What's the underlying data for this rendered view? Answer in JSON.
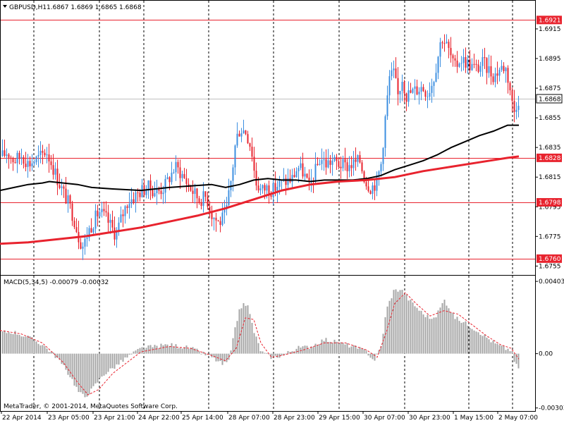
{
  "header": {
    "symbol_text": "GBPUSD,H1",
    "ohlc_text": "1.6867 1.6869 1.6865 1.6868"
  },
  "macd": {
    "label": "MACD(5,34,5) -0.00079 -0.00032"
  },
  "footer": {
    "copyright": "MetaTrader, © 2001-2014, MetaQuotes Software Corp."
  },
  "colors": {
    "bull": "#3c8fe0",
    "bear": "#e8232e",
    "ma_fast": "#000000",
    "ma_slow": "#e8232e",
    "level_line": "#e8232e",
    "macd_hist": "#a6a6a6",
    "macd_signal": "#e8232e",
    "grid": "#000000",
    "frame": "#000000"
  },
  "chart_data": [
    {
      "type": "candlestick",
      "title": "GBPUSD,H1",
      "ylim": [
        1.6749,
        1.6934
      ],
      "y_ticks": [
        "1.6915",
        "1.6895",
        "1.6875",
        "1.6855",
        "1.6835",
        "1.6815",
        "1.6795",
        "1.6775",
        "1.6755"
      ],
      "x_ticks": [
        "22 Apr 2014",
        "23 Apr 05:00",
        "23 Apr 21:00",
        "24 Apr 22:00",
        "25 Apr 14:00",
        "28 Apr 07:00",
        "28 Apr 23:00",
        "29 Apr 15:00",
        "30 Apr 07:00",
        "30 Apr 23:00",
        "1 May 15:00",
        "2 May 07:00"
      ],
      "current_price": "1.6868",
      "levels": [
        {
          "label": "1.6921",
          "value": 1.6921
        },
        {
          "label": "1.6828",
          "value": 1.6828
        },
        {
          "label": "1.6798",
          "value": 1.6798
        },
        {
          "label": "1.6760",
          "value": 1.676
        }
      ],
      "price_path": [
        [
          0,
          1.6828
        ],
        [
          10,
          1.6832
        ],
        [
          20,
          1.6826
        ],
        [
          30,
          1.683
        ],
        [
          40,
          1.6824
        ],
        [
          55,
          1.6828
        ],
        [
          65,
          1.6833
        ],
        [
          72,
          1.6825
        ],
        [
          80,
          1.6815
        ],
        [
          88,
          1.6806
        ],
        [
          96,
          1.6798
        ],
        [
          104,
          1.6788
        ],
        [
          112,
          1.6773
        ],
        [
          118,
          1.6768
        ],
        [
          124,
          1.6778
        ],
        [
          132,
          1.6785
        ],
        [
          140,
          1.6792
        ],
        [
          150,
          1.6787
        ],
        [
          158,
          1.6781
        ],
        [
          164,
          1.6776
        ],
        [
          172,
          1.6788
        ],
        [
          180,
          1.6798
        ],
        [
          190,
          1.6802
        ],
        [
          200,
          1.6806
        ],
        [
          210,
          1.6808
        ],
        [
          222,
          1.6805
        ],
        [
          232,
          1.6808
        ],
        [
          240,
          1.6815
        ],
        [
          248,
          1.6822
        ],
        [
          256,
          1.6818
        ],
        [
          264,
          1.6812
        ],
        [
          272,
          1.6806
        ],
        [
          282,
          1.68
        ],
        [
          292,
          1.6802
        ],
        [
          300,
          1.679
        ],
        [
          310,
          1.6784
        ],
        [
          320,
          1.679
        ],
        [
          328,
          1.6815
        ],
        [
          334,
          1.684
        ],
        [
          340,
          1.6848
        ],
        [
          348,
          1.6846
        ],
        [
          356,
          1.6835
        ],
        [
          362,
          1.6812
        ],
        [
          370,
          1.6806
        ],
        [
          378,
          1.6808
        ],
        [
          386,
          1.6806
        ],
        [
          394,
          1.681
        ],
        [
          404,
          1.6812
        ],
        [
          414,
          1.6814
        ],
        [
          422,
          1.6822
        ],
        [
          430,
          1.6818
        ],
        [
          438,
          1.6808
        ],
        [
          446,
          1.6818
        ],
        [
          454,
          1.6828
        ],
        [
          462,
          1.6824
        ],
        [
          470,
          1.6826
        ],
        [
          480,
          1.6824
        ],
        [
          490,
          1.6822
        ],
        [
          500,
          1.6824
        ],
        [
          510,
          1.6826
        ],
        [
          518,
          1.6812
        ],
        [
          526,
          1.6808
        ],
        [
          534,
          1.6812
        ],
        [
          540,
          1.6824
        ],
        [
          546,
          1.6855
        ],
        [
          552,
          1.6882
        ],
        [
          558,
          1.6885
        ],
        [
          564,
          1.687
        ],
        [
          570,
          1.6882
        ],
        [
          576,
          1.687
        ],
        [
          582,
          1.6872
        ],
        [
          590,
          1.6874
        ],
        [
          598,
          1.6876
        ],
        [
          606,
          1.6872
        ],
        [
          614,
          1.688
        ],
        [
          620,
          1.6895
        ],
        [
          626,
          1.691
        ],
        [
          632,
          1.6905
        ],
        [
          638,
          1.6898
        ],
        [
          644,
          1.6888
        ],
        [
          652,
          1.6895
        ],
        [
          660,
          1.6893
        ],
        [
          668,
          1.689
        ],
        [
          676,
          1.6888
        ],
        [
          684,
          1.6892
        ],
        [
          692,
          1.6888
        ],
        [
          700,
          1.6883
        ],
        [
          708,
          1.6888
        ],
        [
          716,
          1.689
        ],
        [
          722,
          1.6878
        ],
        [
          728,
          1.6858
        ],
        [
          734,
          1.6868
        ]
      ],
      "series": [
        {
          "name": "",
          "kind": "ma_fast",
          "points": [
            [
              0,
              1.6806
            ],
            [
              20,
              1.6808
            ],
            [
              40,
              1.681
            ],
            [
              60,
              1.6811
            ],
            [
              70,
              1.6812
            ],
            [
              90,
              1.6811
            ],
            [
              110,
              1.681
            ],
            [
              130,
              1.6808
            ],
            [
              160,
              1.6807
            ],
            [
              200,
              1.6806
            ],
            [
              240,
              1.6808
            ],
            [
              270,
              1.6809
            ],
            [
              300,
              1.681
            ],
            [
              320,
              1.6808
            ],
            [
              340,
              1.681
            ],
            [
              360,
              1.6813
            ],
            [
              380,
              1.6814
            ],
            [
              400,
              1.6813
            ],
            [
              420,
              1.6813
            ],
            [
              440,
              1.6812
            ],
            [
              460,
              1.6813
            ],
            [
              480,
              1.6813
            ],
            [
              500,
              1.6813
            ],
            [
              520,
              1.6814
            ],
            [
              540,
              1.6816
            ],
            [
              560,
              1.682
            ],
            [
              580,
              1.6823
            ],
            [
              600,
              1.6826
            ],
            [
              620,
              1.683
            ],
            [
              640,
              1.6835
            ],
            [
              660,
              1.6839
            ],
            [
              680,
              1.6843
            ],
            [
              700,
              1.6846
            ],
            [
              720,
              1.685
            ],
            [
              736,
              1.685
            ]
          ]
        },
        {
          "name": "",
          "kind": "ma_slow",
          "points": [
            [
              0,
              1.677
            ],
            [
              40,
              1.6771
            ],
            [
              80,
              1.6773
            ],
            [
              120,
              1.6775
            ],
            [
              160,
              1.6778
            ],
            [
              200,
              1.6781
            ],
            [
              240,
              1.6785
            ],
            [
              280,
              1.6789
            ],
            [
              320,
              1.6794
            ],
            [
              360,
              1.68
            ],
            [
              400,
              1.6806
            ],
            [
              440,
              1.681
            ],
            [
              480,
              1.6812
            ],
            [
              520,
              1.6813
            ],
            [
              560,
              1.6815
            ],
            [
              600,
              1.6819
            ],
            [
              640,
              1.6822
            ],
            [
              680,
              1.6825
            ],
            [
              720,
              1.6828
            ],
            [
              736,
              1.6829
            ]
          ]
        }
      ]
    },
    {
      "type": "bar",
      "title": "MACD(5,34,5) -0.00079 -0.00032",
      "ylim": [
        -0.0032,
        0.00435
      ],
      "y_ticks": [
        "0.00403",
        "0.00",
        "-0.00303"
      ],
      "histogram_path": [
        [
          0,
          0.0012
        ],
        [
          20,
          0.0012
        ],
        [
          40,
          0.0009
        ],
        [
          60,
          0.0005
        ],
        [
          80,
          -0.0002
        ],
        [
          100,
          -0.0013
        ],
        [
          112,
          -0.0022
        ],
        [
          120,
          -0.0024
        ],
        [
          130,
          -0.002
        ],
        [
          145,
          -0.0012
        ],
        [
          160,
          -0.0008
        ],
        [
          180,
          -0.0002
        ],
        [
          200,
          0.0003
        ],
        [
          240,
          0.0005
        ],
        [
          270,
          0.0003
        ],
        [
          300,
          -0.0002
        ],
        [
          315,
          -0.0006
        ],
        [
          325,
          -0.0004
        ],
        [
          332,
          0.0012
        ],
        [
          340,
          0.0026
        ],
        [
          350,
          0.0028
        ],
        [
          360,
          0.0012
        ],
        [
          370,
          0.0001
        ],
        [
          385,
          -0.0002
        ],
        [
          400,
          -0.0001
        ],
        [
          420,
          0.0003
        ],
        [
          440,
          0.0004
        ],
        [
          460,
          0.0008
        ],
        [
          480,
          0.0006
        ],
        [
          500,
          0.0004
        ],
        [
          520,
          0.0001
        ],
        [
          530,
          -0.0004
        ],
        [
          540,
          0.0004
        ],
        [
          548,
          0.0025
        ],
        [
          558,
          0.0035
        ],
        [
          568,
          0.0036
        ],
        [
          580,
          0.003
        ],
        [
          600,
          0.0022
        ],
        [
          615,
          0.0019
        ],
        [
          630,
          0.003
        ],
        [
          645,
          0.002
        ],
        [
          660,
          0.0017
        ],
        [
          680,
          0.0012
        ],
        [
          700,
          0.0006
        ],
        [
          715,
          0.0003
        ],
        [
          725,
          0.0002
        ],
        [
          730,
          -0.0006
        ],
        [
          736,
          -0.0008
        ]
      ],
      "signal_path": [
        [
          0,
          0.0013
        ],
        [
          30,
          0.0011
        ],
        [
          60,
          0.0006
        ],
        [
          90,
          -0.0005
        ],
        [
          110,
          -0.0016
        ],
        [
          125,
          -0.0023
        ],
        [
          140,
          -0.002
        ],
        [
          160,
          -0.0011
        ],
        [
          180,
          -0.0005
        ],
        [
          200,
          0.0001
        ],
        [
          240,
          0.0004
        ],
        [
          270,
          0.0003
        ],
        [
          300,
          -0.0001
        ],
        [
          320,
          -0.0004
        ],
        [
          335,
          0.0003
        ],
        [
          348,
          0.002
        ],
        [
          360,
          0.0019
        ],
        [
          370,
          0.0006
        ],
        [
          385,
          -0.0002
        ],
        [
          400,
          -0.0001
        ],
        [
          430,
          0.0002
        ],
        [
          460,
          0.0006
        ],
        [
          490,
          0.0006
        ],
        [
          520,
          0.0002
        ],
        [
          535,
          -0.0002
        ],
        [
          548,
          0.0012
        ],
        [
          560,
          0.0028
        ],
        [
          575,
          0.0034
        ],
        [
          590,
          0.0028
        ],
        [
          610,
          0.0021
        ],
        [
          630,
          0.0024
        ],
        [
          650,
          0.0022
        ],
        [
          670,
          0.0016
        ],
        [
          690,
          0.001
        ],
        [
          710,
          0.0005
        ],
        [
          725,
          0.0003
        ],
        [
          736,
          -0.0003
        ]
      ]
    }
  ]
}
